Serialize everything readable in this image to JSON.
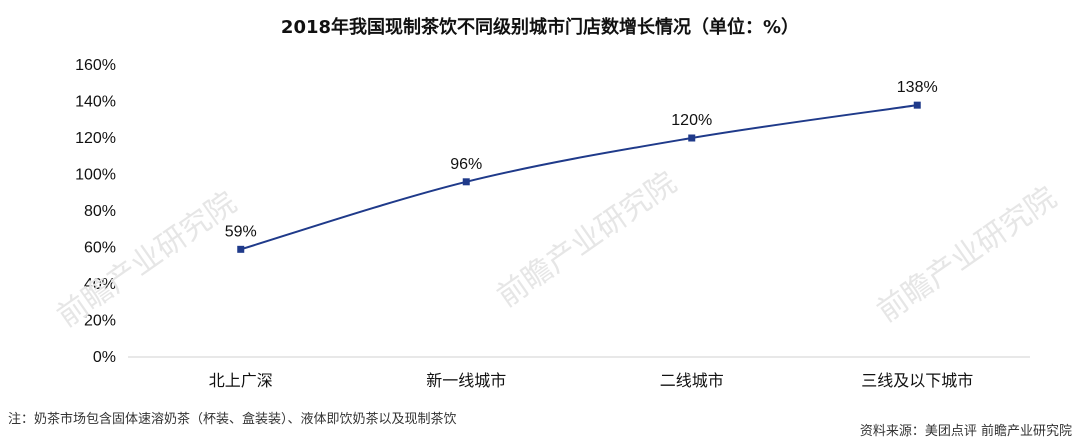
{
  "chart_data": {
    "type": "line",
    "title": "2018年我国现制茶饮不同级别城市门店数增长情况（单位：%）",
    "categories": [
      "北上广深",
      "新一线城市",
      "二线城市",
      "三线及以下城市"
    ],
    "values": [
      59,
      96,
      120,
      138
    ],
    "data_labels": [
      "59%",
      "96%",
      "120%",
      "138%"
    ],
    "ylim": [
      0,
      160
    ],
    "yticks": [
      0,
      20,
      40,
      60,
      80,
      100,
      120,
      140,
      160
    ],
    "ytick_labels": [
      "0%",
      "20%",
      "40%",
      "60%",
      "80%",
      "100%",
      "120%",
      "140%",
      "160%"
    ],
    "grid": false,
    "legend": "none",
    "line_color": "#1f3a8a",
    "marker_color": "#1f3a8a"
  },
  "note": "注：奶茶市场包含固体速溶奶茶（杯装、盒装装）、液体即饮奶茶以及现制茶饮",
  "source": "资料来源：美团点评 前瞻产业研究院",
  "watermark": "前瞻产业研究院"
}
